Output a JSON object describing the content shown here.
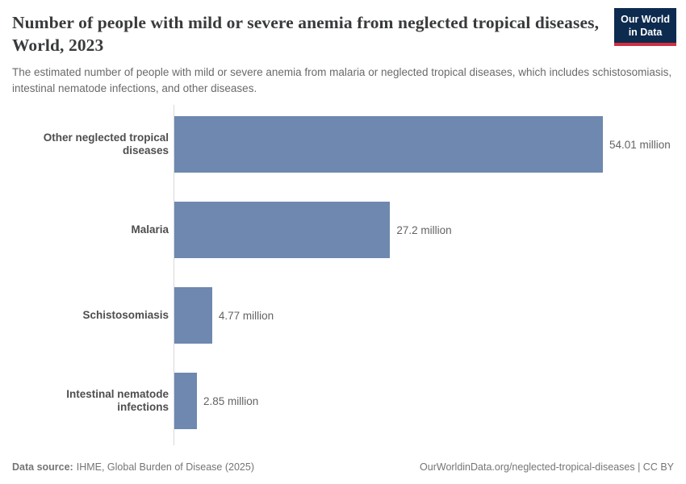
{
  "header": {
    "title": "Number of people with mild or severe anemia from neglected tropical diseases, World, 2023",
    "subtitle": "The estimated number of people with mild or severe anemia from malaria or neglected tropical diseases, which includes schistosomiasis, intestinal nematode infections, and other diseases.",
    "logo": {
      "line1": "Our World",
      "line2": "in Data",
      "bg_color": "#0d2b4e",
      "stripe_color": "#cf2f42"
    }
  },
  "chart_data": {
    "type": "bar",
    "orientation": "horizontal",
    "categories": [
      "Other neglected tropical diseases",
      "Malaria",
      "Schistosomiasis",
      "Intestinal nematode infections"
    ],
    "values": [
      54.01,
      27.2,
      4.77,
      2.85
    ],
    "value_labels": [
      "54.01 million",
      "27.2 million",
      "4.77 million",
      "2.85 million"
    ],
    "unit": "million",
    "xlim": [
      0,
      54.01
    ],
    "bar_color": "#6e88af",
    "grid": "off",
    "legend": "none"
  },
  "footer": {
    "source_label": "Data source:",
    "source_text": "IHME, Global Burden of Disease (2025)",
    "right_text": "OurWorldinData.org/neglected-tropical-diseases | CC BY"
  }
}
